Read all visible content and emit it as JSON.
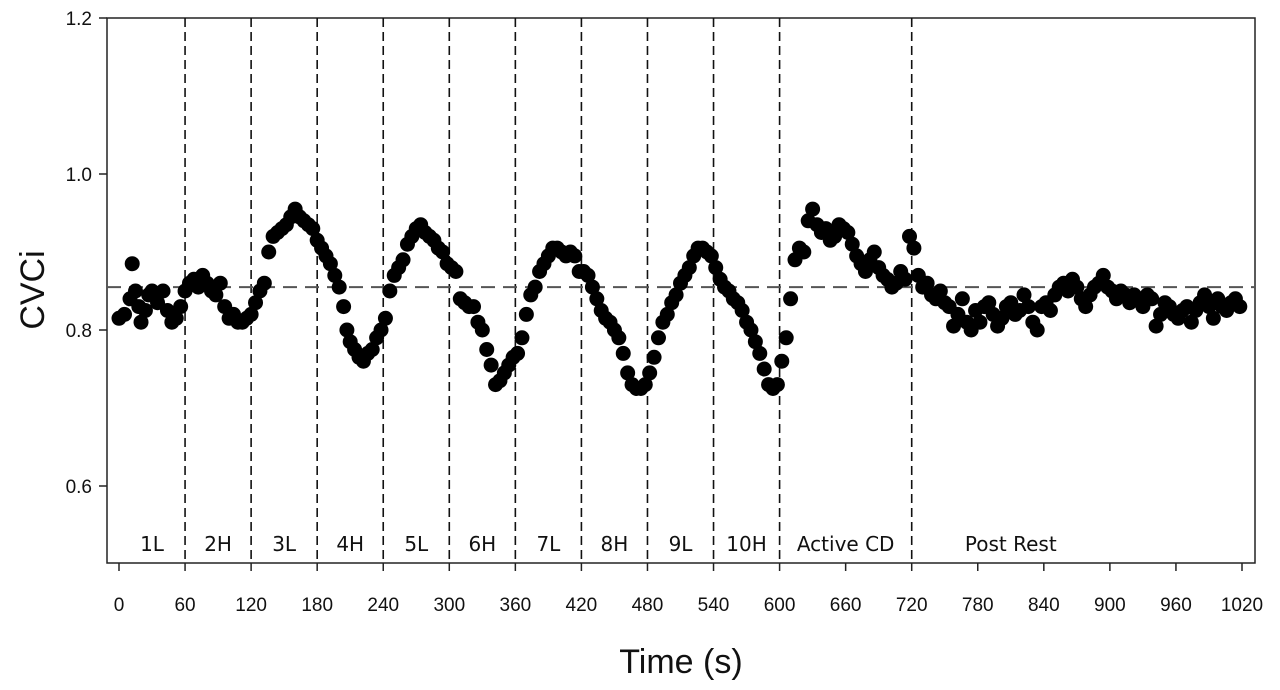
{
  "chart_data": {
    "type": "scatter",
    "title": "",
    "xlabel": "Time (s)",
    "ylabel": "CVCi",
    "xlim": [
      0,
      1020
    ],
    "ylim": [
      0.5,
      1.2
    ],
    "x_ticks": [
      0,
      60,
      120,
      180,
      240,
      300,
      360,
      420,
      480,
      540,
      600,
      660,
      720,
      780,
      840,
      900,
      960,
      1020
    ],
    "y_ticks": [
      0.6,
      0.8,
      1.0,
      1.2
    ],
    "y_tick_labels": [
      "0.6",
      "0.8",
      "1.0",
      "1.2"
    ],
    "grid": false,
    "reference_line": {
      "y": 0.855,
      "style": "dashed"
    },
    "phase_boundaries": [
      60,
      120,
      180,
      240,
      300,
      360,
      420,
      480,
      540,
      600,
      720
    ],
    "phases": [
      {
        "label": "1L",
        "x": 30
      },
      {
        "label": "2H",
        "x": 90
      },
      {
        "label": "3L",
        "x": 150
      },
      {
        "label": "4H",
        "x": 210
      },
      {
        "label": "5L",
        "x": 270
      },
      {
        "label": "6H",
        "x": 330
      },
      {
        "label": "7L",
        "x": 390
      },
      {
        "label": "8H",
        "x": 450
      },
      {
        "label": "9L",
        "x": 510
      },
      {
        "label": "10H",
        "x": 570
      },
      {
        "label": "Active CD",
        "x": 660
      },
      {
        "label": "Post Rest",
        "x": 810
      }
    ],
    "series": [
      {
        "color": "#000000",
        "points": [
          [
            0,
            0.815
          ],
          [
            5,
            0.82
          ],
          [
            10,
            0.84
          ],
          [
            12,
            0.885
          ],
          [
            15,
            0.85
          ],
          [
            18,
            0.83
          ],
          [
            20,
            0.81
          ],
          [
            24,
            0.825
          ],
          [
            27,
            0.845
          ],
          [
            30,
            0.85
          ],
          [
            35,
            0.835
          ],
          [
            40,
            0.85
          ],
          [
            44,
            0.825
          ],
          [
            48,
            0.81
          ],
          [
            52,
            0.815
          ],
          [
            56,
            0.83
          ],
          [
            60,
            0.85
          ],
          [
            64,
            0.86
          ],
          [
            68,
            0.865
          ],
          [
            72,
            0.855
          ],
          [
            76,
            0.87
          ],
          [
            80,
            0.86
          ],
          [
            84,
            0.85
          ],
          [
            88,
            0.845
          ],
          [
            92,
            0.86
          ],
          [
            96,
            0.83
          ],
          [
            100,
            0.815
          ],
          [
            104,
            0.82
          ],
          [
            108,
            0.81
          ],
          [
            112,
            0.81
          ],
          [
            116,
            0.815
          ],
          [
            120,
            0.82
          ],
          [
            124,
            0.835
          ],
          [
            128,
            0.85
          ],
          [
            132,
            0.86
          ],
          [
            136,
            0.9
          ],
          [
            140,
            0.92
          ],
          [
            144,
            0.925
          ],
          [
            148,
            0.93
          ],
          [
            152,
            0.935
          ],
          [
            156,
            0.945
          ],
          [
            160,
            0.955
          ],
          [
            164,
            0.945
          ],
          [
            168,
            0.94
          ],
          [
            172,
            0.935
          ],
          [
            176,
            0.93
          ],
          [
            180,
            0.915
          ],
          [
            184,
            0.905
          ],
          [
            188,
            0.895
          ],
          [
            192,
            0.885
          ],
          [
            196,
            0.87
          ],
          [
            200,
            0.855
          ],
          [
            204,
            0.83
          ],
          [
            207,
            0.8
          ],
          [
            210,
            0.785
          ],
          [
            214,
            0.775
          ],
          [
            218,
            0.765
          ],
          [
            222,
            0.76
          ],
          [
            226,
            0.77
          ],
          [
            230,
            0.775
          ],
          [
            234,
            0.79
          ],
          [
            238,
            0.8
          ],
          [
            242,
            0.815
          ],
          [
            246,
            0.85
          ],
          [
            250,
            0.87
          ],
          [
            254,
            0.88
          ],
          [
            258,
            0.89
          ],
          [
            262,
            0.91
          ],
          [
            266,
            0.92
          ],
          [
            270,
            0.93
          ],
          [
            274,
            0.935
          ],
          [
            278,
            0.925
          ],
          [
            282,
            0.92
          ],
          [
            286,
            0.915
          ],
          [
            290,
            0.905
          ],
          [
            294,
            0.9
          ],
          [
            298,
            0.885
          ],
          [
            302,
            0.88
          ],
          [
            306,
            0.875
          ],
          [
            310,
            0.84
          ],
          [
            314,
            0.835
          ],
          [
            318,
            0.83
          ],
          [
            322,
            0.83
          ],
          [
            326,
            0.81
          ],
          [
            330,
            0.8
          ],
          [
            334,
            0.775
          ],
          [
            338,
            0.755
          ],
          [
            342,
            0.73
          ],
          [
            346,
            0.735
          ],
          [
            350,
            0.745
          ],
          [
            354,
            0.755
          ],
          [
            358,
            0.765
          ],
          [
            362,
            0.77
          ],
          [
            366,
            0.79
          ],
          [
            370,
            0.82
          ],
          [
            374,
            0.845
          ],
          [
            378,
            0.855
          ],
          [
            382,
            0.875
          ],
          [
            386,
            0.885
          ],
          [
            390,
            0.895
          ],
          [
            394,
            0.905
          ],
          [
            398,
            0.905
          ],
          [
            402,
            0.9
          ],
          [
            406,
            0.895
          ],
          [
            410,
            0.9
          ],
          [
            414,
            0.895
          ],
          [
            418,
            0.875
          ],
          [
            422,
            0.875
          ],
          [
            426,
            0.87
          ],
          [
            430,
            0.855
          ],
          [
            434,
            0.84
          ],
          [
            438,
            0.825
          ],
          [
            442,
            0.815
          ],
          [
            446,
            0.81
          ],
          [
            450,
            0.8
          ],
          [
            454,
            0.79
          ],
          [
            458,
            0.77
          ],
          [
            462,
            0.745
          ],
          [
            466,
            0.73
          ],
          [
            470,
            0.725
          ],
          [
            474,
            0.725
          ],
          [
            478,
            0.73
          ],
          [
            482,
            0.745
          ],
          [
            486,
            0.765
          ],
          [
            490,
            0.79
          ],
          [
            494,
            0.81
          ],
          [
            498,
            0.82
          ],
          [
            502,
            0.835
          ],
          [
            506,
            0.845
          ],
          [
            510,
            0.86
          ],
          [
            514,
            0.87
          ],
          [
            518,
            0.88
          ],
          [
            522,
            0.895
          ],
          [
            526,
            0.905
          ],
          [
            530,
            0.905
          ],
          [
            534,
            0.9
          ],
          [
            538,
            0.895
          ],
          [
            542,
            0.88
          ],
          [
            546,
            0.865
          ],
          [
            550,
            0.855
          ],
          [
            554,
            0.85
          ],
          [
            558,
            0.84
          ],
          [
            562,
            0.835
          ],
          [
            566,
            0.825
          ],
          [
            570,
            0.81
          ],
          [
            574,
            0.8
          ],
          [
            578,
            0.785
          ],
          [
            582,
            0.77
          ],
          [
            586,
            0.75
          ],
          [
            590,
            0.73
          ],
          [
            594,
            0.725
          ],
          [
            598,
            0.73
          ],
          [
            602,
            0.76
          ],
          [
            606,
            0.79
          ],
          [
            610,
            0.84
          ],
          [
            614,
            0.89
          ],
          [
            618,
            0.905
          ],
          [
            622,
            0.9
          ],
          [
            626,
            0.94
          ],
          [
            630,
            0.955
          ],
          [
            634,
            0.935
          ],
          [
            638,
            0.925
          ],
          [
            642,
            0.93
          ],
          [
            646,
            0.915
          ],
          [
            650,
            0.92
          ],
          [
            654,
            0.935
          ],
          [
            658,
            0.93
          ],
          [
            662,
            0.925
          ],
          [
            666,
            0.91
          ],
          [
            670,
            0.895
          ],
          [
            674,
            0.885
          ],
          [
            678,
            0.875
          ],
          [
            682,
            0.89
          ],
          [
            686,
            0.9
          ],
          [
            690,
            0.88
          ],
          [
            694,
            0.87
          ],
          [
            698,
            0.865
          ],
          [
            702,
            0.855
          ],
          [
            706,
            0.86
          ],
          [
            710,
            0.875
          ],
          [
            714,
            0.865
          ],
          [
            718,
            0.92
          ],
          [
            722,
            0.905
          ],
          [
            726,
            0.87
          ],
          [
            730,
            0.855
          ],
          [
            734,
            0.86
          ],
          [
            738,
            0.845
          ],
          [
            742,
            0.84
          ],
          [
            746,
            0.85
          ],
          [
            750,
            0.835
          ],
          [
            754,
            0.83
          ],
          [
            758,
            0.805
          ],
          [
            762,
            0.82
          ],
          [
            766,
            0.84
          ],
          [
            770,
            0.81
          ],
          [
            774,
            0.8
          ],
          [
            778,
            0.825
          ],
          [
            782,
            0.81
          ],
          [
            786,
            0.83
          ],
          [
            790,
            0.835
          ],
          [
            794,
            0.82
          ],
          [
            798,
            0.805
          ],
          [
            802,
            0.815
          ],
          [
            806,
            0.83
          ],
          [
            810,
            0.835
          ],
          [
            814,
            0.82
          ],
          [
            818,
            0.825
          ],
          [
            822,
            0.845
          ],
          [
            826,
            0.83
          ],
          [
            830,
            0.81
          ],
          [
            834,
            0.8
          ],
          [
            838,
            0.83
          ],
          [
            842,
            0.835
          ],
          [
            846,
            0.825
          ],
          [
            850,
            0.845
          ],
          [
            854,
            0.855
          ],
          [
            858,
            0.86
          ],
          [
            862,
            0.85
          ],
          [
            866,
            0.865
          ],
          [
            870,
            0.855
          ],
          [
            874,
            0.84
          ],
          [
            878,
            0.83
          ],
          [
            882,
            0.845
          ],
          [
            886,
            0.855
          ],
          [
            890,
            0.86
          ],
          [
            894,
            0.87
          ],
          [
            898,
            0.855
          ],
          [
            902,
            0.85
          ],
          [
            906,
            0.84
          ],
          [
            910,
            0.85
          ],
          [
            914,
            0.845
          ],
          [
            918,
            0.835
          ],
          [
            922,
            0.845
          ],
          [
            926,
            0.84
          ],
          [
            930,
            0.83
          ],
          [
            934,
            0.845
          ],
          [
            938,
            0.84
          ],
          [
            942,
            0.805
          ],
          [
            946,
            0.82
          ],
          [
            950,
            0.835
          ],
          [
            954,
            0.83
          ],
          [
            958,
            0.82
          ],
          [
            962,
            0.815
          ],
          [
            966,
            0.825
          ],
          [
            970,
            0.83
          ],
          [
            974,
            0.81
          ],
          [
            978,
            0.825
          ],
          [
            982,
            0.835
          ],
          [
            986,
            0.845
          ],
          [
            990,
            0.83
          ],
          [
            994,
            0.815
          ],
          [
            998,
            0.84
          ],
          [
            1002,
            0.83
          ],
          [
            1006,
            0.825
          ],
          [
            1010,
            0.835
          ],
          [
            1014,
            0.84
          ],
          [
            1018,
            0.83
          ]
        ]
      }
    ]
  }
}
